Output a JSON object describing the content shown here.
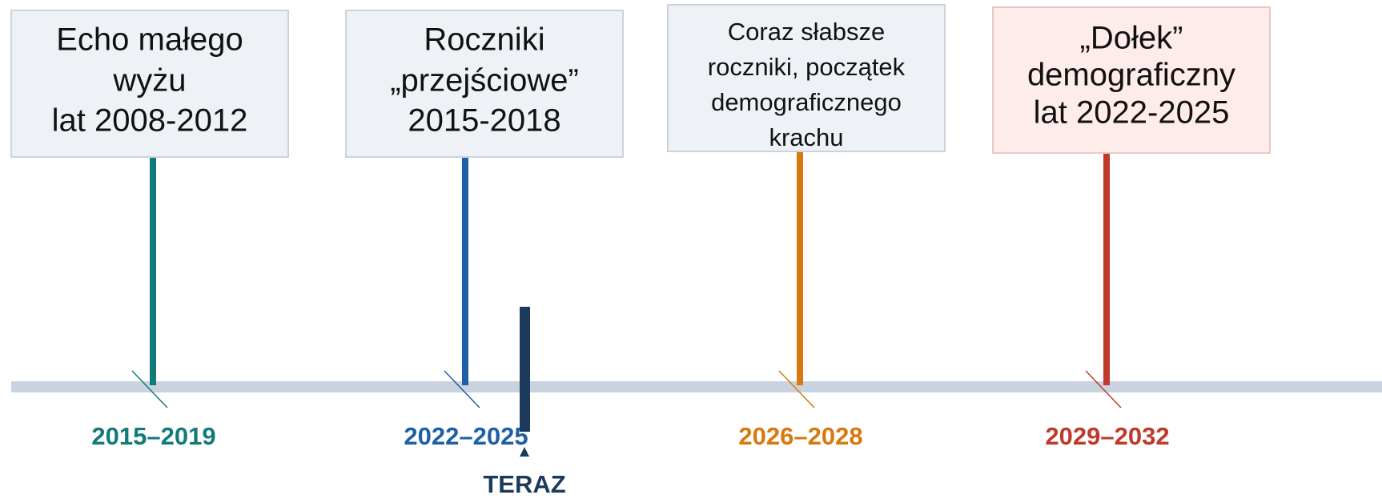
{
  "timeline": {
    "events": [
      {
        "lines": [
          "Echo małego",
          "wyżu",
          "lat 2008-2012"
        ],
        "period": "2015–2019",
        "color": "#137a7a",
        "box_fill": "#eef2f7",
        "box_stroke": "#c9d3df"
      },
      {
        "lines": [
          "Roczniki",
          "„przejściowe”",
          "2015-2018"
        ],
        "period": "2022–2025",
        "color": "#1f5fa6",
        "box_fill": "#eef2f7",
        "box_stroke": "#c9d3df"
      },
      {
        "lines": [
          "Coraz słabsze",
          "roczniki, początek",
          "demograficznego",
          "krachu"
        ],
        "period": "2026–2028",
        "color": "#d9780f",
        "box_fill": "#eef2f7",
        "box_stroke": "#c9d3df"
      },
      {
        "lines": [
          "„Dołek”",
          "demograficzny",
          "lat 2022-2025"
        ],
        "period": "2029–2032",
        "color": "#c0392b",
        "box_fill": "#fdecea",
        "box_stroke": "#e8c9c6"
      }
    ],
    "now": {
      "label": "TERAZ",
      "color": "#1b3a5c"
    }
  }
}
